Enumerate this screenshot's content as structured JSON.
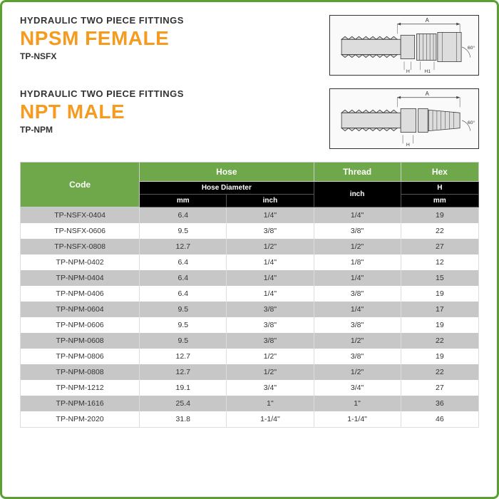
{
  "sections": [
    {
      "category": "HYDRAULIC TWO PIECE FITTINGS",
      "title": "NPSM FEMALE",
      "part_no": "TP-NSFX",
      "diagram": "female"
    },
    {
      "category": "HYDRAULIC TWO PIECE FITTINGS",
      "title": "NPT MALE",
      "part_no": "TP-NPM",
      "diagram": "male"
    }
  ],
  "table": {
    "header_bg": "#6fa84a",
    "sub_bg": "#000000",
    "row_alt_bg": "#c7c7c7",
    "headers": {
      "code": "Code",
      "hose": "Hose",
      "thread": "Thread",
      "hex": "Hex"
    },
    "sub_hose": "Hose Diameter",
    "sub_thread": "inch",
    "sub_hex": "H",
    "units": {
      "mm": "mm",
      "inch": "inch",
      "hex_mm": "mm"
    },
    "rows": [
      {
        "code": "TP-NSFX-0404",
        "mm": "6.4",
        "inch": "1/4\"",
        "thread": "1/4\"",
        "hex": "19"
      },
      {
        "code": "TP-NSFX-0606",
        "mm": "9.5",
        "inch": "3/8\"",
        "thread": "3/8\"",
        "hex": "22"
      },
      {
        "code": "TP-NSFX-0808",
        "mm": "12.7",
        "inch": "1/2\"",
        "thread": "1/2\"",
        "hex": "27"
      },
      {
        "code": "TP-NPM-0402",
        "mm": "6.4",
        "inch": "1/4\"",
        "thread": "1/8\"",
        "hex": "12"
      },
      {
        "code": "TP-NPM-0404",
        "mm": "6.4",
        "inch": "1/4\"",
        "thread": "1/4\"",
        "hex": "15"
      },
      {
        "code": "TP-NPM-0406",
        "mm": "6.4",
        "inch": "1/4\"",
        "thread": "3/8\"",
        "hex": "19"
      },
      {
        "code": "TP-NPM-0604",
        "mm": "9.5",
        "inch": "3/8\"",
        "thread": "1/4\"",
        "hex": "17"
      },
      {
        "code": "TP-NPM-0606",
        "mm": "9.5",
        "inch": "3/8\"",
        "thread": "3/8\"",
        "hex": "19"
      },
      {
        "code": "TP-NPM-0608",
        "mm": "9.5",
        "inch": "3/8\"",
        "thread": "1/2\"",
        "hex": "22"
      },
      {
        "code": "TP-NPM-0806",
        "mm": "12.7",
        "inch": "1/2\"",
        "thread": "3/8\"",
        "hex": "19"
      },
      {
        "code": "TP-NPM-0808",
        "mm": "12.7",
        "inch": "1/2\"",
        "thread": "1/2\"",
        "hex": "22"
      },
      {
        "code": "TP-NPM-1212",
        "mm": "19.1",
        "inch": "3/4\"",
        "thread": "3/4\"",
        "hex": "27"
      },
      {
        "code": "TP-NPM-1616",
        "mm": "25.4",
        "inch": "1\"",
        "thread": "1\"",
        "hex": "36"
      },
      {
        "code": "TP-NPM-2020",
        "mm": "31.8",
        "inch": "1-1/4\"",
        "thread": "1-1/4\"",
        "hex": "46"
      }
    ]
  }
}
